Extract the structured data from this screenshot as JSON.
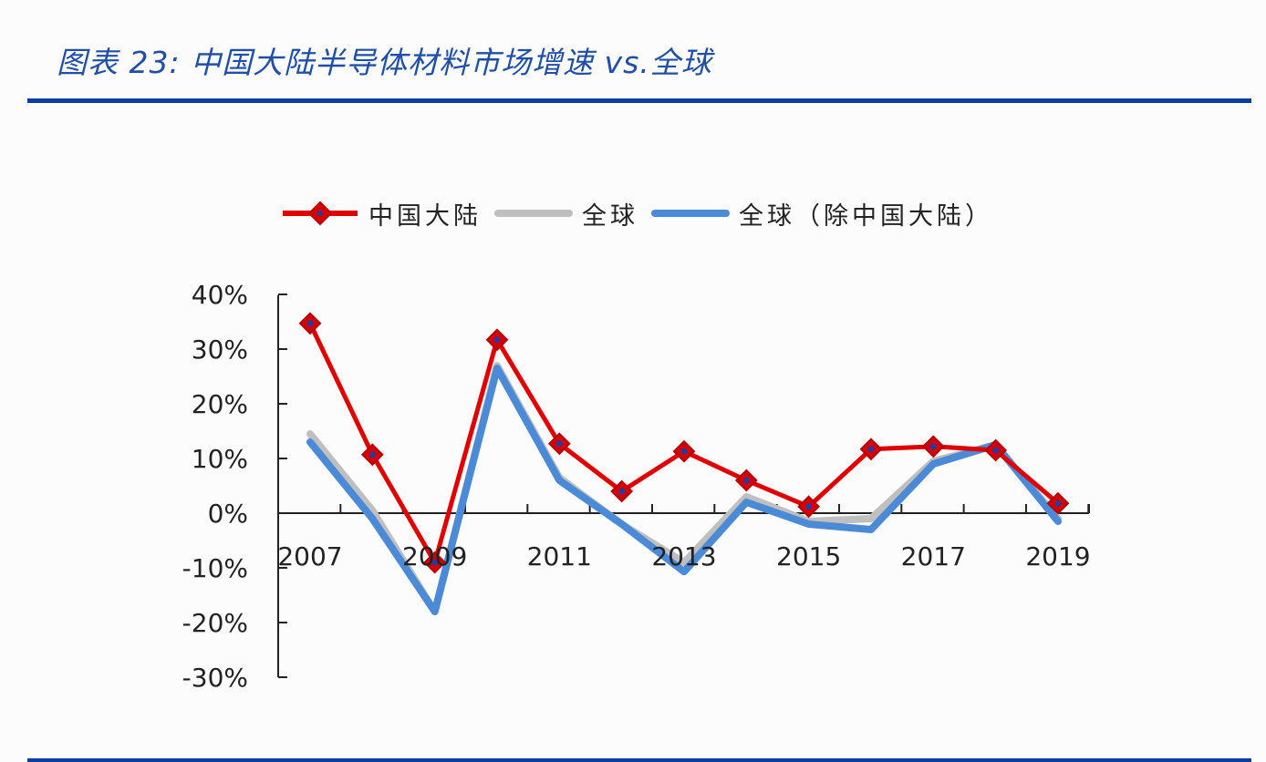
{
  "title": "图表 23:  中国大陆半导体材料市场增速 vs.全球",
  "legend": [
    {
      "label": "中国大陆",
      "color": "#e00000",
      "marker": "diamond"
    },
    {
      "label": "全球",
      "color": "#bfbfbf",
      "marker": "none"
    },
    {
      "label": "全球（除中国大陆）",
      "color": "#4a8ad6",
      "marker": "none"
    }
  ],
  "chart_data": {
    "type": "line",
    "title": "中国大陆半导体材料市场增速 vs.全球",
    "xlabel": "",
    "ylabel": "",
    "x": [
      2007,
      2008,
      2009,
      2010,
      2011,
      2012,
      2013,
      2014,
      2015,
      2016,
      2017,
      2018,
      2019
    ],
    "x_tick_labels": [
      "2007",
      "2009",
      "2011",
      "2013",
      "2015",
      "2017",
      "2019"
    ],
    "y_tick_labels": [
      "40%",
      "30%",
      "20%",
      "10%",
      "0%",
      "-10%",
      "-20%",
      "-30%"
    ],
    "ylim": [
      -30,
      40
    ],
    "y_unit": "%",
    "grid": false,
    "legend_position": "top",
    "series": [
      {
        "name": "中国大陆",
        "color": "#e00000",
        "marker": "diamond",
        "values": [
          34.7,
          10.7,
          -9.0,
          31.7,
          12.7,
          4.0,
          11.3,
          6.0,
          1.2,
          11.7,
          12.2,
          11.5,
          1.8
        ]
      },
      {
        "name": "全球",
        "color": "#bfbfbf",
        "marker": "none",
        "values": [
          14.5,
          0.5,
          -18.0,
          27.0,
          6.5,
          -2.0,
          -9.0,
          3.0,
          -1.5,
          -1.0,
          9.5,
          12.5,
          -1.0
        ]
      },
      {
        "name": "全球（除中国大陆）",
        "color": "#4a8ad6",
        "marker": "none",
        "values": [
          13.0,
          -1.0,
          -18.0,
          26.5,
          6.0,
          -2.0,
          -10.7,
          2.0,
          -2.0,
          -3.0,
          9.0,
          12.5,
          -1.5
        ]
      }
    ]
  }
}
